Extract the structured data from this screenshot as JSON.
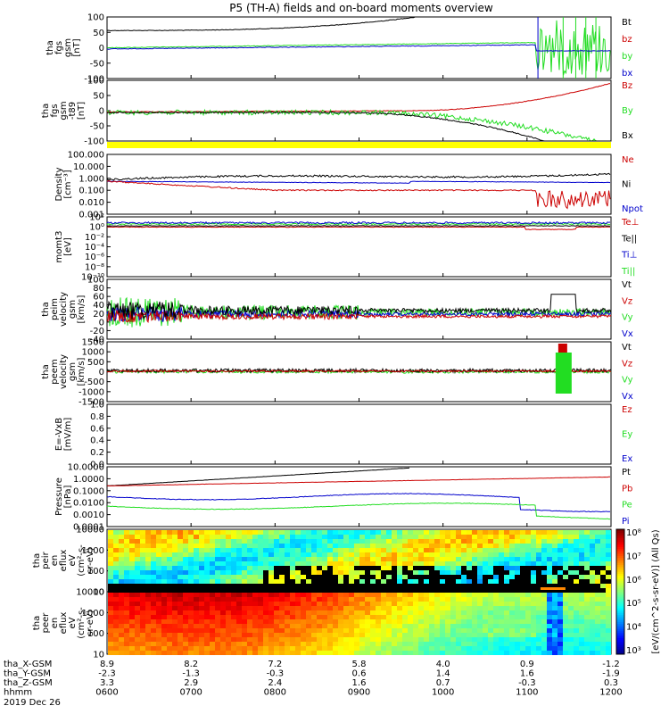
{
  "title": "P5 (TH-A) fields and on-board moments overview",
  "colors": {
    "black": "#000000",
    "red": "#cc0000",
    "green": "#22dd22",
    "blue": "#0000cc",
    "yellow": "#ffff00"
  },
  "chart_data": {
    "type": "line",
    "x_ticks": [
      "0600",
      "0700",
      "0800",
      "0900",
      "1000",
      "1100",
      "1200"
    ],
    "panels": [
      {
        "id": "fgs-gsm",
        "ylabel": [
          "tha",
          "fgs",
          "gsm",
          "[nT]"
        ],
        "yticks": [
          "100",
          "50",
          "0",
          "-50",
          "-100"
        ],
        "ylim": [
          -100,
          100
        ],
        "legend": [
          {
            "text": "Bt",
            "color": "#000000"
          },
          {
            "text": "bz",
            "color": "#cc0000"
          },
          {
            "text": "by",
            "color": "#22dd22"
          },
          {
            "text": "bx",
            "color": "#0000cc"
          }
        ]
      },
      {
        "id": "fgs-gsm-t89",
        "ylabel": [
          "tha",
          "fgs",
          "gsm",
          "-t89",
          "[nT]"
        ],
        "yticks": [
          "100",
          "50",
          "0",
          "-50",
          "-100"
        ],
        "ylim": [
          -100,
          100
        ],
        "legend": [
          {
            "text": "Bz",
            "color": "#cc0000"
          },
          {
            "text": "By",
            "color": "#22dd22"
          },
          {
            "text": "Bx",
            "color": "#000000"
          }
        ]
      },
      {
        "id": "density",
        "ylabel": [
          "Density",
          "[cm⁻³]"
        ],
        "yticks": [
          "100.000",
          "10.000",
          "1.000",
          "0.100",
          "0.010",
          "0.001"
        ],
        "log": true,
        "legend": [
          {
            "text": "Ne",
            "color": "#cc0000"
          },
          {
            "text": "Ni",
            "color": "#000000"
          },
          {
            "text": "Npot",
            "color": "#0000cc"
          }
        ]
      },
      {
        "id": "temperature",
        "ylabel": [
          "momt3",
          "[eV]"
        ],
        "yticks": [
          "10²",
          "10⁰",
          "10⁻²",
          "10⁻⁴",
          "10⁻⁶",
          "10⁻⁸",
          "10⁻¹⁰"
        ],
        "log": true,
        "legend": [
          {
            "text": "Te⊥",
            "color": "#cc0000"
          },
          {
            "text": "Te||",
            "color": "#000000"
          },
          {
            "text": "Ti⊥",
            "color": "#0000cc"
          },
          {
            "text": "Ti||",
            "color": "#22dd22"
          }
        ]
      },
      {
        "id": "peim-velocity",
        "ylabel": [
          "tha",
          "peim",
          "velocity",
          "gsm",
          "[km/s]"
        ],
        "yticks": [
          "100",
          "80",
          "60",
          "40",
          "20",
          "0",
          "-20",
          "-40"
        ],
        "ylim": [
          -40,
          100
        ],
        "legend": [
          {
            "text": "Vt",
            "color": "#000000"
          },
          {
            "text": "Vz",
            "color": "#cc0000"
          },
          {
            "text": "Vy",
            "color": "#22dd22"
          },
          {
            "text": "Vx",
            "color": "#0000cc"
          }
        ]
      },
      {
        "id": "peem-velocity",
        "ylabel": [
          "tha",
          "peem",
          "velocity",
          "gsm",
          "[km/s]"
        ],
        "yticks": [
          "1500",
          "1000",
          "500",
          "0",
          "-500",
          "-1000",
          "-1500"
        ],
        "ylim": [
          -1500,
          1500
        ],
        "legend": [
          {
            "text": "Vt",
            "color": "#000000"
          },
          {
            "text": "Vz",
            "color": "#cc0000"
          },
          {
            "text": "Vy",
            "color": "#22dd22"
          },
          {
            "text": "Vx",
            "color": "#0000cc"
          }
        ]
      },
      {
        "id": "efield",
        "ylabel": [
          "E=-VxB",
          "[mV/m]"
        ],
        "yticks": [
          "1.0",
          "0.8",
          "0.6",
          "0.4",
          "0.2",
          "0.0"
        ],
        "ylim": [
          0,
          1
        ],
        "legend": [
          {
            "text": "Ez",
            "color": "#cc0000"
          },
          {
            "text": "Ey",
            "color": "#22dd22"
          },
          {
            "text": "Ex",
            "color": "#0000cc"
          }
        ]
      },
      {
        "id": "pressure",
        "ylabel": [
          "Pressure",
          "[nPa]"
        ],
        "yticks": [
          "10.0000",
          "1.0000",
          "0.1000",
          "0.0100",
          "0.0010",
          "0.0001"
        ],
        "log": true,
        "legend": [
          {
            "text": "Pt",
            "color": "#000000"
          },
          {
            "text": "Pb",
            "color": "#cc0000"
          },
          {
            "text": "Pe",
            "color": "#22dd22"
          },
          {
            "text": "Pi",
            "color": "#0000cc"
          }
        ]
      },
      {
        "id": "peir-spectrogram",
        "ylabel": [
          "tha",
          "peir",
          "en",
          "eflux",
          "eV",
          "(cm²-s-",
          "sr-eV)"
        ],
        "yticks": [
          "10000",
          "1000",
          "100",
          "10"
        ],
        "log": true,
        "type": "heatmap"
      },
      {
        "id": "peer-spectrogram",
        "ylabel": [
          "tha",
          "peer",
          "en",
          "eflux",
          "eV",
          "(cm²-s-",
          "sr-eV)"
        ],
        "yticks": [
          "10000",
          "1000",
          "100",
          "10"
        ],
        "log": true,
        "type": "heatmap"
      }
    ],
    "colorbar": {
      "ticks": [
        "10⁸",
        "10⁷",
        "10⁶",
        "10⁵",
        "10⁴",
        "10³"
      ],
      "label": "[eV/(cm^2-s-sr-eV)] (All Qs)"
    },
    "ephemeris": [
      {
        "label": "tha_X-GSM",
        "values": [
          "8.9",
          "8.2",
          "7.2",
          "5.8",
          "4.0",
          "0.9",
          "-1.2"
        ]
      },
      {
        "label": "tha_Y-GSM",
        "values": [
          "-2.3",
          "-1.3",
          "-0.3",
          "0.6",
          "1.4",
          "1.6",
          "-1.9"
        ]
      },
      {
        "label": "tha_Z-GSM",
        "values": [
          "3.3",
          "2.9",
          "2.4",
          "1.6",
          "0.7",
          "-0.3",
          "0.3"
        ]
      },
      {
        "label": "hhmm",
        "values": [
          "0600",
          "0700",
          "0800",
          "0900",
          "1000",
          "1100",
          "1200"
        ]
      }
    ],
    "date_label": "2019 Dec 26"
  }
}
